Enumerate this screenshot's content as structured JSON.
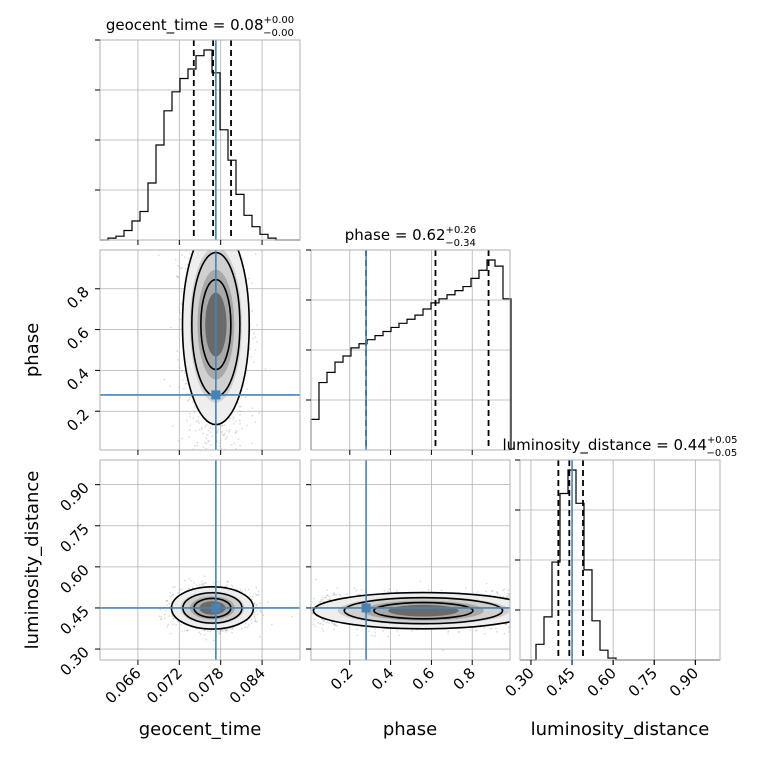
{
  "chart_data": {
    "type": "corner",
    "truth_color": "#4682b4",
    "hist_color": "#000000",
    "params": [
      {
        "name": "geocent_time",
        "label": "geocent_time",
        "range": [
          0.0605,
          0.0895
        ],
        "ticks": [
          0.066,
          0.072,
          0.078,
          0.084
        ],
        "tick_labels": [
          "0.066",
          "0.072",
          "0.078",
          "0.084"
        ],
        "truth": 0.0773,
        "quantiles": [
          0.0741,
          0.0769,
          0.0795
        ],
        "title_prefix": "geocent_time = 0.08",
        "title_plus": "+0.00",
        "title_minus": "−0.00",
        "hist": [
          0.0,
          0.01,
          0.02,
          0.05,
          0.1,
          0.15,
          0.3,
          0.5,
          0.68,
          0.78,
          0.85,
          0.9,
          0.97,
          1.0,
          0.88,
          0.58,
          0.42,
          0.24,
          0.13,
          0.07,
          0.03,
          0.01,
          0.0,
          0.0,
          0.0
        ]
      },
      {
        "name": "phase",
        "label": "phase",
        "range": [
          0.01,
          0.99
        ],
        "ticks": [
          0.2,
          0.4,
          0.6,
          0.8
        ],
        "tick_labels": [
          "0.2",
          "0.4",
          "0.6",
          "0.8"
        ],
        "truth": 0.28,
        "quantiles": [
          0.28,
          0.62,
          0.88
        ],
        "title_prefix": "phase = 0.62",
        "title_plus": "+0.26",
        "title_minus": "−0.34",
        "hist": [
          0.15,
          0.33,
          0.38,
          0.43,
          0.46,
          0.5,
          0.52,
          0.54,
          0.56,
          0.58,
          0.6,
          0.62,
          0.64,
          0.66,
          0.69,
          0.72,
          0.74,
          0.76,
          0.78,
          0.8,
          0.84,
          0.88,
          0.93,
          0.9,
          0.74
        ]
      },
      {
        "name": "luminosity_distance",
        "label": "luminosity_distance",
        "range": [
          0.26,
          0.99
        ],
        "ticks": [
          0.3,
          0.45,
          0.6,
          0.75,
          0.9
        ],
        "tick_labels": [
          "0.30",
          "0.45",
          "0.60",
          "0.75",
          "0.90"
        ],
        "truth": 0.45,
        "quantiles": [
          0.4,
          0.44,
          0.49
        ],
        "title_prefix": "luminosity_distance = 0.44",
        "title_plus": "+0.05",
        "title_minus": "−0.05",
        "hist": [
          0.0,
          0.0,
          0.08,
          0.22,
          0.5,
          0.85,
          0.97,
          0.8,
          0.46,
          0.2,
          0.05,
          0.01,
          0.0,
          0.0,
          0.0,
          0.0,
          0.0,
          0.0,
          0.0,
          0.0,
          0.0,
          0.0,
          0.0,
          0.0,
          0.0
        ]
      }
    ],
    "pair_densities": [
      {
        "x": "geocent_time",
        "y": "phase",
        "mean": [
          0.0773,
          0.6
        ],
        "sd": [
          0.0022,
          0.3
        ],
        "cutoff": [
          0.0,
          0.62
        ]
      },
      {
        "x": "geocent_time",
        "y": "luminosity_distance",
        "mean": [
          0.0768,
          0.45
        ],
        "sd": [
          0.0027,
          0.035
        ]
      },
      {
        "x": "phase",
        "y": "luminosity_distance",
        "mean": [
          0.6,
          0.44
        ],
        "sd": [
          0.3,
          0.03
        ],
        "cutoff": [
          0.62,
          0.0
        ]
      }
    ]
  }
}
